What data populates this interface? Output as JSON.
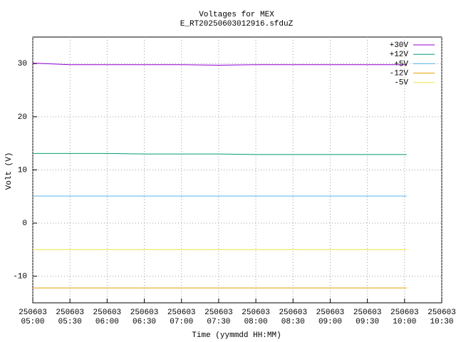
{
  "chart_data": {
    "type": "line",
    "title": "Voltages for MEX",
    "subtitle": "E_RT20250603012916.sfduZ",
    "x_label": "Time (yymmdd HH:MM)",
    "y_label": "Volt (V)",
    "x": [
      5,
      5.5,
      6,
      6.5,
      7,
      7.5,
      8,
      8.5,
      9,
      9.5,
      10.03
    ],
    "xlim": [
      5,
      10.5
    ],
    "xticks": [
      {
        "value": 5,
        "label": [
          "250603",
          "05:00"
        ]
      },
      {
        "value": 5.5,
        "label": [
          "250603",
          "05:30"
        ]
      },
      {
        "value": 6,
        "label": [
          "250603",
          "06:00"
        ]
      },
      {
        "value": 6.5,
        "label": [
          "250603",
          "06:30"
        ]
      },
      {
        "value": 7,
        "label": [
          "250603",
          "07:00"
        ]
      },
      {
        "value": 7.5,
        "label": [
          "250603",
          "07:30"
        ]
      },
      {
        "value": 8,
        "label": [
          "250603",
          "08:00"
        ]
      },
      {
        "value": 8.5,
        "label": [
          "250603",
          "08:30"
        ]
      },
      {
        "value": 9,
        "label": [
          "250603",
          "09:00"
        ]
      },
      {
        "value": 9.5,
        "label": [
          "250603",
          "09:30"
        ]
      },
      {
        "value": 10,
        "label": [
          "250603",
          "10:00"
        ]
      },
      {
        "value": 10.5,
        "label": [
          "250603",
          "10:30"
        ]
      }
    ],
    "ylim": [
      -15,
      35
    ],
    "yticks": [
      -10,
      0,
      10,
      20,
      30
    ],
    "grid": true,
    "legend": "top-right",
    "series": [
      {
        "name": "+30V",
        "color": "#9400d3",
        "values": [
          30.1,
          29.8,
          29.8,
          29.8,
          29.8,
          29.7,
          29.8,
          29.8,
          29.8,
          29.8,
          29.8
        ]
      },
      {
        "name": "+12V",
        "color": "#009e73",
        "values": [
          13.1,
          13.1,
          13.1,
          13.0,
          13.0,
          13.0,
          12.9,
          12.9,
          12.9,
          12.9,
          12.9
        ]
      },
      {
        "name": "+5V",
        "color": "#56b4e9",
        "values": [
          5.1,
          5.1,
          5.1,
          5.1,
          5.1,
          5.1,
          5.1,
          5.1,
          5.1,
          5.1,
          5.1
        ]
      },
      {
        "name": "-12V",
        "color": "#e69f00",
        "values": [
          -12.2,
          -12.2,
          -12.2,
          -12.2,
          -12.2,
          -12.2,
          -12.2,
          -12.2,
          -12.2,
          -12.2,
          -12.2
        ]
      },
      {
        "name": "-5V",
        "color": "#f0e442",
        "values": [
          -5.0,
          -5.0,
          -5.0,
          -5.0,
          -5.0,
          -5.0,
          -5.0,
          -5.0,
          -5.0,
          -5.0,
          -5.0
        ]
      }
    ]
  }
}
